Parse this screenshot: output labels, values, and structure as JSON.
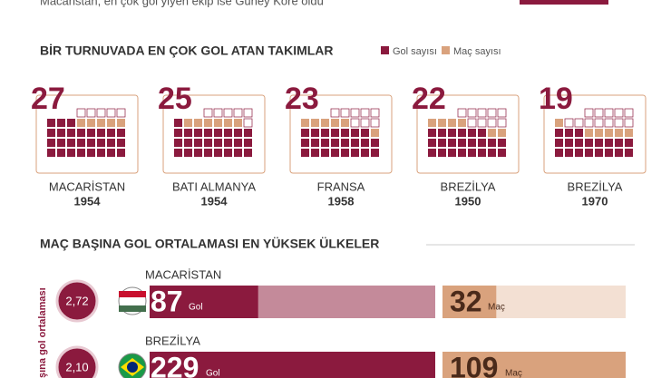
{
  "header": {
    "subtitle": "Macaristan, en çok gol yiyen ekip ise Güney Kore oldu"
  },
  "section1": {
    "title": "BİR TURNUVADA EN ÇOK GOL ATAN TAKIMLAR",
    "legend": {
      "goals": "Gol sayısı",
      "matches": "Maç sayısı"
    },
    "teams": [
      {
        "name": "MACARİSTAN",
        "year": "1954",
        "goals": 27,
        "matches": 5
      },
      {
        "name": "BATI ALMANYA",
        "year": "1954",
        "goals": 25,
        "matches": 6
      },
      {
        "name": "FRANSA",
        "year": "1958",
        "goals": 23,
        "matches": 6
      },
      {
        "name": "BREZİLYA",
        "year": "1950",
        "goals": 22,
        "matches": 6
      },
      {
        "name": "BREZİLYA",
        "year": "1970",
        "goals": 19,
        "matches": 6
      }
    ]
  },
  "section2": {
    "title": "MAÇ BAŞINA GOL ORTALAMASI EN YÜKSEK ÜLKELER",
    "axis_label": "şına gol ortalaması",
    "goal_unit": "Gol",
    "match_unit": "Maç",
    "rows": [
      {
        "name": "MACARİSTAN",
        "average": "2,72",
        "goals": 87,
        "matches": 32
      },
      {
        "name": "BREZİLYA",
        "average": "2,10",
        "goals": 229,
        "matches": 109
      }
    ]
  }
}
